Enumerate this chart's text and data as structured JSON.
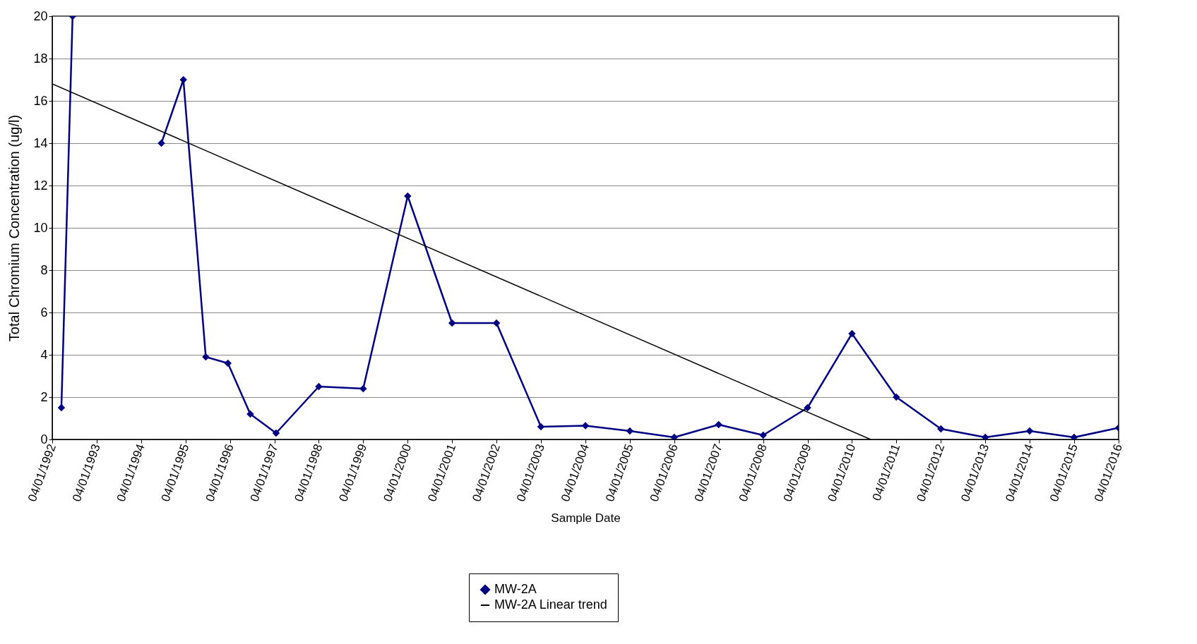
{
  "chart_data": {
    "type": "line",
    "xlabel": "Sample Date",
    "ylabel": "Total Chromium Concentration (ug/l)",
    "series": [
      {
        "name": "MW-2A",
        "color": "#000080",
        "marker": "diamond",
        "x": [
          "1992-06-15",
          "1992-09-15",
          "1993-10-01",
          "1994-09-15",
          "1995-03-15",
          "1995-09-15",
          "1996-03-15",
          "1996-09-15",
          "1997-04-15",
          "1998-04-01",
          "1999-04-01",
          "2000-04-01",
          "2001-04-01",
          "2002-04-01",
          "2003-04-01",
          "2004-04-01",
          "2005-04-01",
          "2006-04-01",
          "2007-04-01",
          "2008-04-01",
          "2009-04-01",
          "2010-04-01",
          "2011-04-01",
          "2012-04-01",
          "2013-04-01",
          "2014-04-01",
          "2015-04-01",
          "2016-04-01"
        ],
        "values": [
          1.5,
          20,
          null,
          14,
          17,
          3.9,
          3.6,
          1.2,
          0.3,
          2.5,
          2.4,
          11.5,
          5.5,
          5.5,
          0.6,
          0.65,
          0.4,
          0.1,
          0.7,
          0.2,
          1.5,
          5,
          2,
          0.5,
          0.1,
          0.4,
          0.1,
          0.55
        ]
      },
      {
        "name": "MW-2A Linear trend",
        "color": "#000000",
        "marker": "none",
        "x": [
          "1992-04-01",
          "2010-09-01"
        ],
        "values": [
          16.8,
          0
        ]
      }
    ],
    "xlim": [
      "1992-04-01",
      "2016-04-01"
    ],
    "xticks": [
      {
        "value": "1992-04-01",
        "label": "04/01/1992"
      },
      {
        "value": "1993-04-01",
        "label": "04/01/1993"
      },
      {
        "value": "1994-04-01",
        "label": "04/01/1994"
      },
      {
        "value": "1995-04-01",
        "label": "04/01/1995"
      },
      {
        "value": "1996-04-01",
        "label": "04/01/1996"
      },
      {
        "value": "1997-04-01",
        "label": "04/01/1997"
      },
      {
        "value": "1998-04-01",
        "label": "04/01/1998"
      },
      {
        "value": "1999-04-01",
        "label": "04/01/1999"
      },
      {
        "value": "2000-04-01",
        "label": "04/01/2000"
      },
      {
        "value": "2001-04-01",
        "label": "04/01/2001"
      },
      {
        "value": "2002-04-01",
        "label": "04/01/2002"
      },
      {
        "value": "2003-04-01",
        "label": "04/01/2003"
      },
      {
        "value": "2004-04-01",
        "label": "04/01/2004"
      },
      {
        "value": "2005-04-01",
        "label": "04/01/2005"
      },
      {
        "value": "2006-04-01",
        "label": "04/01/2006"
      },
      {
        "value": "2007-04-01",
        "label": "04/01/2007"
      },
      {
        "value": "2008-04-01",
        "label": "04/01/2008"
      },
      {
        "value": "2009-04-01",
        "label": "04/01/2009"
      },
      {
        "value": "2010-04-01",
        "label": "04/01/2010"
      },
      {
        "value": "2011-04-01",
        "label": "04/01/2011"
      },
      {
        "value": "2012-04-01",
        "label": "04/01/2012"
      },
      {
        "value": "2013-04-01",
        "label": "04/01/2013"
      },
      {
        "value": "2014-04-01",
        "label": "04/01/2014"
      },
      {
        "value": "2015-04-01",
        "label": "04/01/2015"
      },
      {
        "value": "2016-04-01",
        "label": "04/01/2016"
      }
    ],
    "ylim": [
      0,
      20
    ],
    "yticks": [
      0,
      2,
      4,
      6,
      8,
      10,
      12,
      14,
      16,
      18,
      20
    ],
    "grid": "y",
    "legend": "bottom",
    "line_style": "solid"
  }
}
